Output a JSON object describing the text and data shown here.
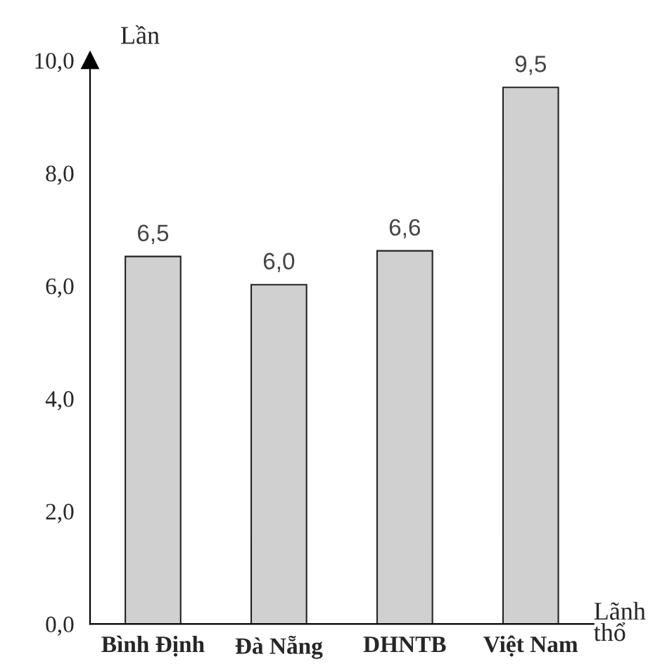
{
  "chart_data": {
    "type": "bar",
    "categories": [
      "Bình Định",
      "Đà Nẵng",
      "DHNTB",
      "Việt Nam"
    ],
    "values": [
      6.5,
      6.0,
      6.6,
      9.5
    ],
    "color": "#d0d0d0",
    "value_labels": [
      "6,5",
      "6,0",
      "6,6",
      "9,5"
    ],
    "ylabel": "Lần",
    "xlabel": "Lãnh\nthổ",
    "ylim": [
      0,
      10
    ],
    "yticks": [
      {
        "value": 0,
        "label": "0,0"
      },
      {
        "value": 2,
        "label": "2,0"
      },
      {
        "value": 4,
        "label": "4,0"
      },
      {
        "value": 6,
        "label": "6,0"
      },
      {
        "value": 8,
        "label": "8,0"
      },
      {
        "value": 10,
        "label": "10,0"
      }
    ],
    "grid": false,
    "legend": false
  }
}
